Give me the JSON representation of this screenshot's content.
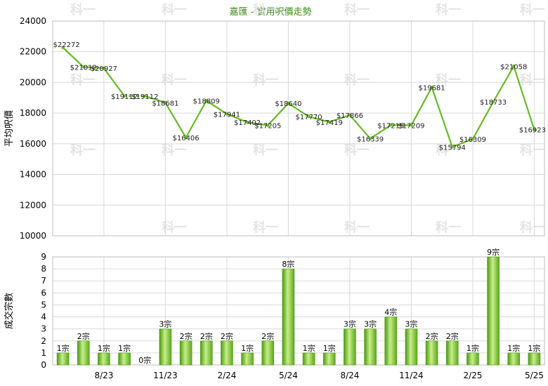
{
  "title": "嘉匯 - 實用呎價走勢",
  "colors": {
    "line": "#66bb22",
    "bar_light": "#c8ee88",
    "bar_dark": "#4c9a14",
    "title": "#3a8a17"
  },
  "watermark": "科一",
  "chart_data": [
    {
      "type": "line",
      "ylabel": "平均呎價",
      "ylim": [
        10000,
        24000
      ],
      "yticks": [
        10000,
        12000,
        14000,
        16000,
        18000,
        20000,
        22000,
        24000
      ],
      "series": [
        {
          "values": [
            22272,
            21012,
            20927,
            19112,
            19112,
            18681,
            16406,
            18809,
            17941,
            17402,
            17205,
            18640,
            17770,
            17419,
            17866,
            16339,
            17215,
            17209,
            19681,
            15794,
            16309,
            18733,
            21058,
            16923
          ],
          "labels": [
            "$22272",
            "$21012",
            "$20927",
            "$19112",
            "$19112",
            "$18681",
            "$16406",
            "$18809",
            "$17941",
            "$17402",
            "$17205",
            "$18640",
            "$17770",
            "$17419",
            "$17866",
            "$16339",
            "$17215",
            "$17209",
            "$19681",
            "$15794",
            "$16309",
            "$18733",
            "$21058",
            "$16923"
          ],
          "dashed_segments": [
            3
          ]
        }
      ],
      "grid": true
    },
    {
      "type": "bar",
      "ylabel": "成交宗數",
      "ylim": [
        0,
        9
      ],
      "yticks": [
        0,
        1,
        2,
        3,
        4,
        5,
        6,
        7,
        8,
        9
      ],
      "x_tick_labels": [
        {
          "index": 2,
          "label": "8/23"
        },
        {
          "index": 5,
          "label": "11/23"
        },
        {
          "index": 8,
          "label": "2/24"
        },
        {
          "index": 11,
          "label": "5/24"
        },
        {
          "index": 14,
          "label": "8/24"
        },
        {
          "index": 17,
          "label": "11/24"
        },
        {
          "index": 20,
          "label": "2/25"
        },
        {
          "index": 23,
          "label": "5/25"
        }
      ],
      "values": [
        1,
        2,
        1,
        1,
        0,
        3,
        2,
        2,
        2,
        1,
        2,
        8,
        1,
        1,
        3,
        3,
        4,
        3,
        2,
        2,
        1,
        9,
        1,
        1
      ],
      "labels": [
        "1宗",
        "2宗",
        "1宗",
        "1宗",
        "0宗",
        "3宗",
        "2宗",
        "2宗",
        "2宗",
        "1宗",
        "2宗",
        "8宗",
        "1宗",
        "1宗",
        "3宗",
        "3宗",
        "4宗",
        "3宗",
        "2宗",
        "2宗",
        "1宗",
        "9宗",
        "1宗",
        "1宗"
      ],
      "grid": true
    }
  ]
}
